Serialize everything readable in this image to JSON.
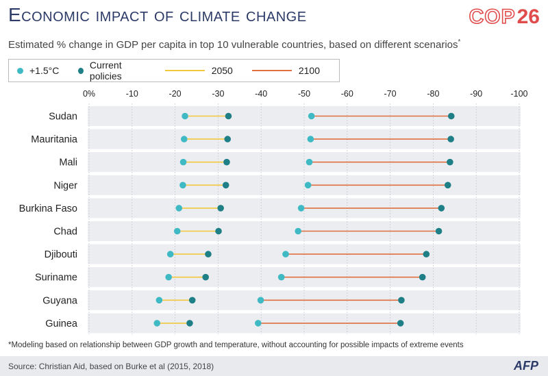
{
  "title": "Economic impact of climate change",
  "logo": {
    "text": "COP",
    "number": "26"
  },
  "subtitle": "Estimated % change in GDP per capita in top 10 vulnerable countries, based on different scenarios",
  "subtitle_mark": "*",
  "legend": {
    "item1": "+1.5°C",
    "item2": "Current policies",
    "item3": "2050",
    "item4": "2100"
  },
  "footnote": "*Modeling based on relationship between GDP growth and temperature, without accounting for possible impacts of extreme events",
  "source": "Source: Christian Aid, based on Burke et al (2015, 2018)",
  "agency": "AFP",
  "colors": {
    "dot_15": "#3fbac4",
    "dot_current": "#1f7f86",
    "line_2050": "#f2c83a",
    "line_2100": "#e06f3f",
    "row_bg": "#ecedf1",
    "title": "#2b3a67"
  },
  "chart_data": {
    "type": "scatter",
    "title": "Economic impact of climate change",
    "subtitle": "Estimated % change in GDP per capita in top 10 vulnerable countries, based on different scenarios",
    "xlim": [
      0,
      -100
    ],
    "xticks": [
      0,
      -10,
      -20,
      -30,
      -40,
      -50,
      -60,
      -70,
      -80,
      -90,
      -100
    ],
    "xtick_labels": [
      "0%",
      "-10",
      "-20",
      "-30",
      "-40",
      "-50",
      "-60",
      "-70",
      "-80",
      "-90",
      "-100"
    ],
    "grid": true,
    "legend_position": "top-left",
    "categories": [
      "Sudan",
      "Mauritania",
      "Mali",
      "Niger",
      "Burkina Faso",
      "Chad",
      "Djibouti",
      "Suriname",
      "Guyana",
      "Guinea"
    ],
    "series": [
      {
        "name": "2050",
        "scenario_15": [
          -22.3,
          -22.1,
          -21.9,
          -21.8,
          -20.9,
          -20.5,
          -18.9,
          -18.5,
          -16.3,
          -15.8
        ],
        "scenario_current": [
          -32.4,
          -32.2,
          -32.0,
          -31.8,
          -30.6,
          -30.1,
          -27.7,
          -27.1,
          -24.0,
          -23.4
        ]
      },
      {
        "name": "2100",
        "scenario_15": [
          -51.7,
          -51.5,
          -51.2,
          -50.9,
          -49.3,
          -48.6,
          -45.7,
          -44.7,
          -39.9,
          -39.3
        ],
        "scenario_current": [
          -84.2,
          -84.1,
          -83.9,
          -83.4,
          -81.9,
          -81.3,
          -78.4,
          -77.5,
          -72.6,
          -72.4
        ]
      }
    ]
  }
}
